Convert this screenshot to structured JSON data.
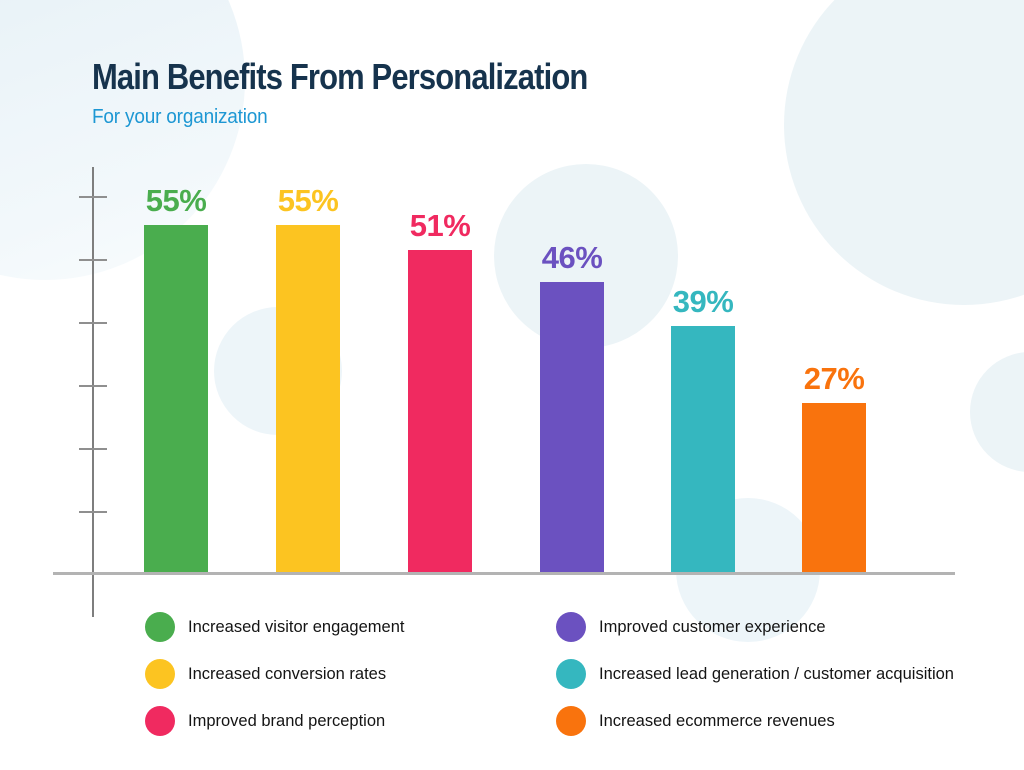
{
  "header": {
    "title": "Main Benefits From Personalization",
    "subtitle": "For your organization"
  },
  "chart": {
    "bars": [
      {
        "label": "Increased visitor engagement",
        "value": 55,
        "value_label": "55%",
        "color": "#4AAD4E"
      },
      {
        "label": "Increased conversion rates",
        "value": 55,
        "value_label": "55%",
        "color": "#FCC421"
      },
      {
        "label": "Improved brand perception",
        "value": 51,
        "value_label": "51%",
        "color": "#F02A60"
      },
      {
        "label": "Improved customer experience",
        "value": 46,
        "value_label": "46%",
        "color": "#6B51C0"
      },
      {
        "label": "Increased lead generation / customer acquisition",
        "value": 39,
        "value_label": "39%",
        "color": "#35B7BF"
      },
      {
        "label": "Increased ecommerce revenues",
        "value": 27,
        "value_label": "27%",
        "color": "#F9730D"
      }
    ]
  },
  "chart_data": {
    "type": "bar",
    "title": "Main Benefits From Personalization",
    "subtitle": "For your organization",
    "categories": [
      "Increased visitor engagement",
      "Increased conversion rates",
      "Improved brand perception",
      "Improved customer experience",
      "Increased lead generation / customer acquisition",
      "Increased ecommerce revenues"
    ],
    "values": [
      55,
      55,
      51,
      46,
      39,
      27
    ],
    "unit": "percent",
    "data_labels": [
      "55%",
      "55%",
      "51%",
      "46%",
      "39%",
      "27%"
    ],
    "bar_colors": [
      "#4AAD4E",
      "#FCC421",
      "#F02A60",
      "#6B51C0",
      "#35B7BF",
      "#F9730D"
    ],
    "xlabel": "",
    "ylabel": "",
    "ylim": [
      0,
      60
    ],
    "y_tick_interval": 10,
    "y_tick_labels_shown": false,
    "grid": false,
    "legend_position": "bottom, two columns"
  },
  "colors": {
    "title_text": "#16334D",
    "subtitle_text": "#1D97D3",
    "axis": "#7E7E7E",
    "baseline": "#B3B3B3",
    "background": "#FFFFFF",
    "decorative_circle": "#ECF4F7"
  }
}
